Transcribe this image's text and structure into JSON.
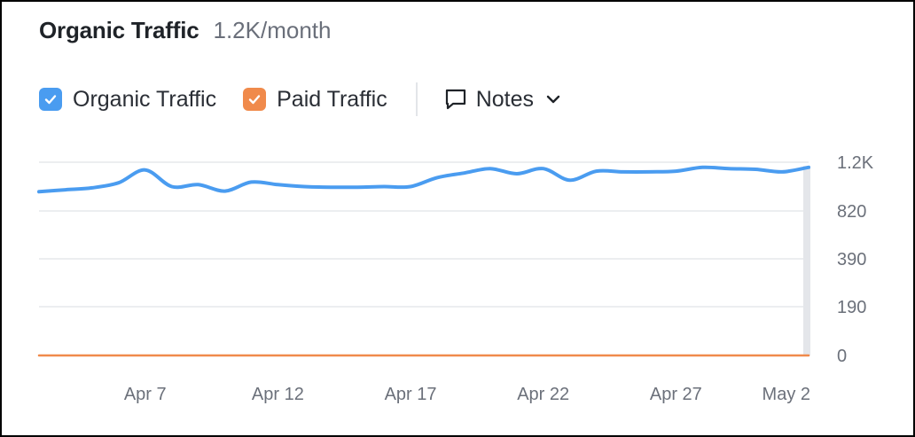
{
  "header": {
    "title": "Organic Traffic",
    "subtitle": "1.2K/month"
  },
  "legend": {
    "organic_label": "Organic Traffic",
    "paid_label": "Paid Traffic",
    "notes_label": "Notes"
  },
  "colors": {
    "organic": "#4a9cf0",
    "paid": "#f08a4b",
    "grid": "#e6e8ec",
    "axis_text": "#6b707a"
  },
  "chart_data": {
    "type": "line",
    "title": "Organic Traffic",
    "y_tick_labels": [
      "1.2K",
      "820",
      "390",
      "190",
      "0"
    ],
    "y_scale": "non-linear (ticks 0, 190, 390, 820, 1.2K evenly spaced)",
    "x_tick_labels": [
      "Apr 7",
      "Apr 12",
      "Apr 17",
      "Apr 22",
      "Apr 27",
      "May 2"
    ],
    "x": [
      "Apr 3",
      "Apr 4",
      "Apr 5",
      "Apr 6",
      "Apr 7",
      "Apr 8",
      "Apr 9",
      "Apr 10",
      "Apr 11",
      "Apr 12",
      "Apr 13",
      "Apr 14",
      "Apr 15",
      "Apr 16",
      "Apr 17",
      "Apr 18",
      "Apr 19",
      "Apr 20",
      "Apr 21",
      "Apr 22",
      "Apr 23",
      "Apr 24",
      "Apr 25",
      "Apr 26",
      "Apr 27",
      "Apr 28",
      "Apr 29",
      "Apr 30",
      "May 1",
      "May 2"
    ],
    "series": [
      {
        "name": "Organic Traffic",
        "values": [
          970,
          985,
          1000,
          1040,
          1140,
          1010,
          1025,
          975,
          1045,
          1025,
          1010,
          1005,
          1005,
          1010,
          1010,
          1080,
          1115,
          1150,
          1110,
          1150,
          1060,
          1130,
          1125,
          1125,
          1130,
          1160,
          1150,
          1145,
          1125,
          1160
        ]
      },
      {
        "name": "Paid Traffic",
        "values": [
          0,
          0,
          0,
          0,
          0,
          0,
          0,
          0,
          0,
          0,
          0,
          0,
          0,
          0,
          0,
          0,
          0,
          0,
          0,
          0,
          0,
          0,
          0,
          0,
          0,
          0,
          0,
          0,
          0,
          0
        ]
      }
    ],
    "ylim": [
      0,
      1200
    ],
    "grid": true,
    "legend_position": "top-left"
  }
}
